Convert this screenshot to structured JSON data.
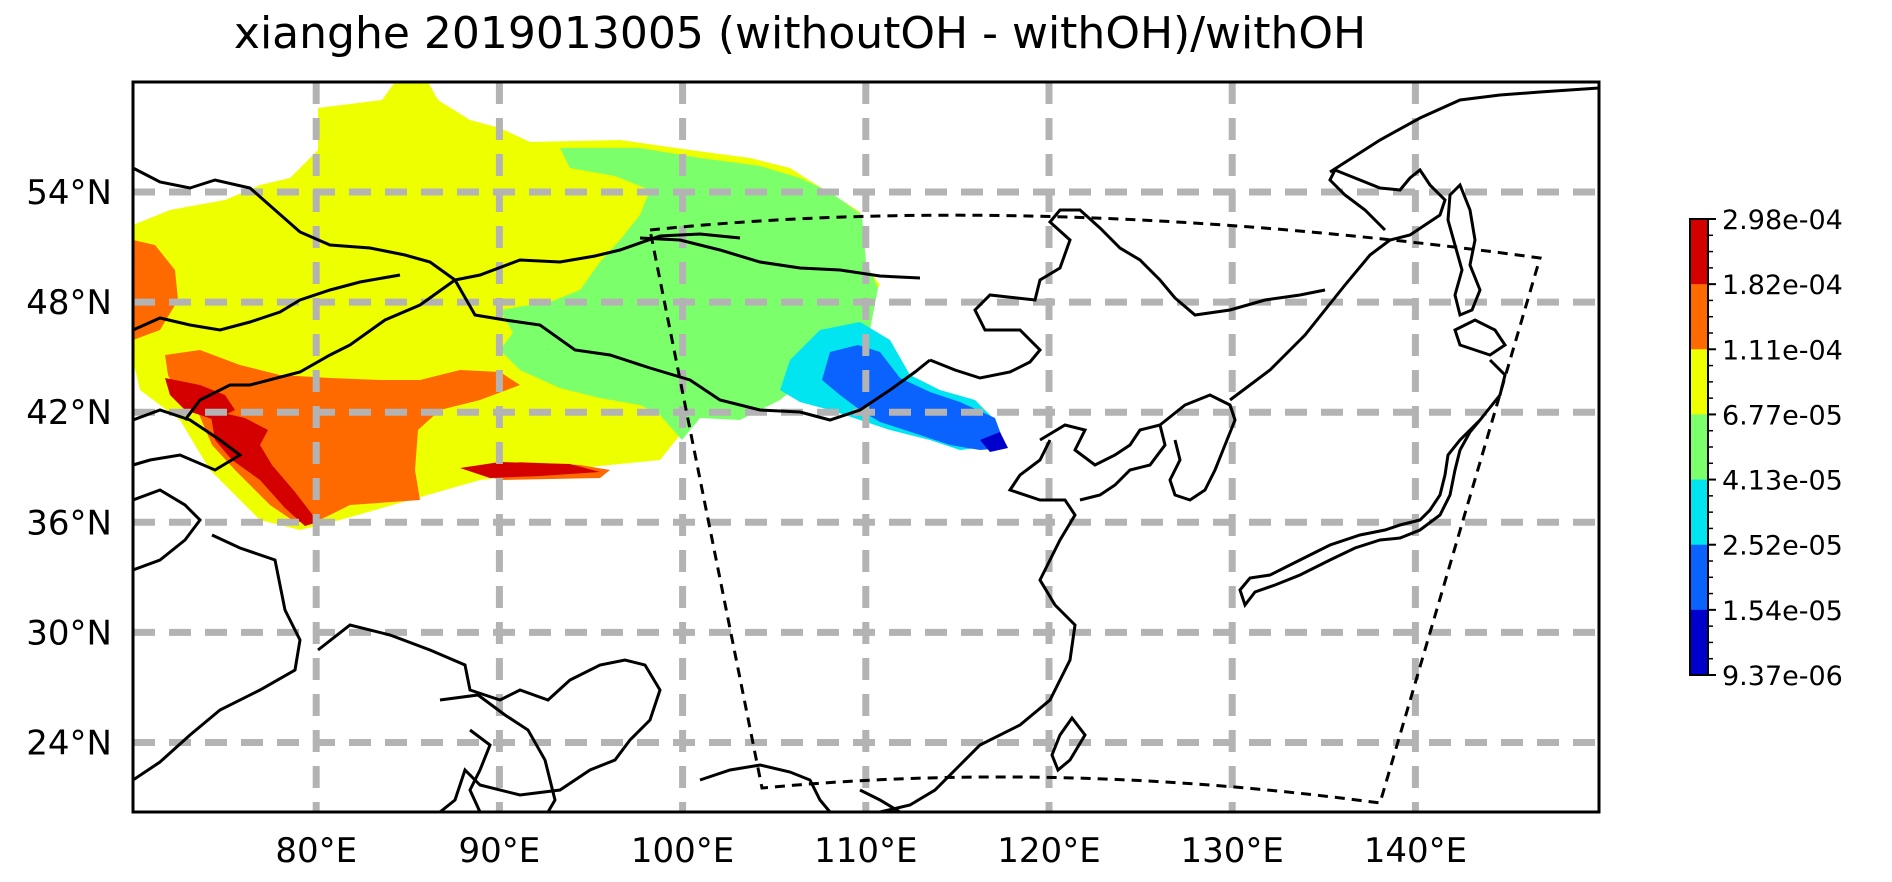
{
  "title": "xianghe 2019013005 (withoutOH - withOH)/withOH",
  "map": {
    "lon_ticks": [
      "80°E",
      "90°E",
      "100°E",
      "110°E",
      "120°E",
      "130°E",
      "140°E"
    ],
    "lat_ticks": [
      "54°N",
      "48°N",
      "42°N",
      "36°N",
      "30°N",
      "24°N"
    ],
    "lon_tick_values": [
      80,
      90,
      100,
      110,
      120,
      130,
      140
    ],
    "lat_tick_values": [
      54,
      48,
      42,
      36,
      30,
      24
    ],
    "extent": {
      "lon": [
        70,
        150
      ],
      "lat": [
        20,
        60
      ]
    },
    "gridlines": true
  },
  "colorbar": {
    "labels": [
      "2.98e-04",
      "1.82e-04",
      "1.11e-04",
      "6.77e-05",
      "4.13e-05",
      "2.52e-05",
      "1.54e-05",
      "9.37e-06"
    ],
    "colors": [
      "#d40000",
      "#ff6a00",
      "#eeff00",
      "#7bff6a",
      "#00e5f0",
      "#0a62ff",
      "#0000cc"
    ]
  }
}
